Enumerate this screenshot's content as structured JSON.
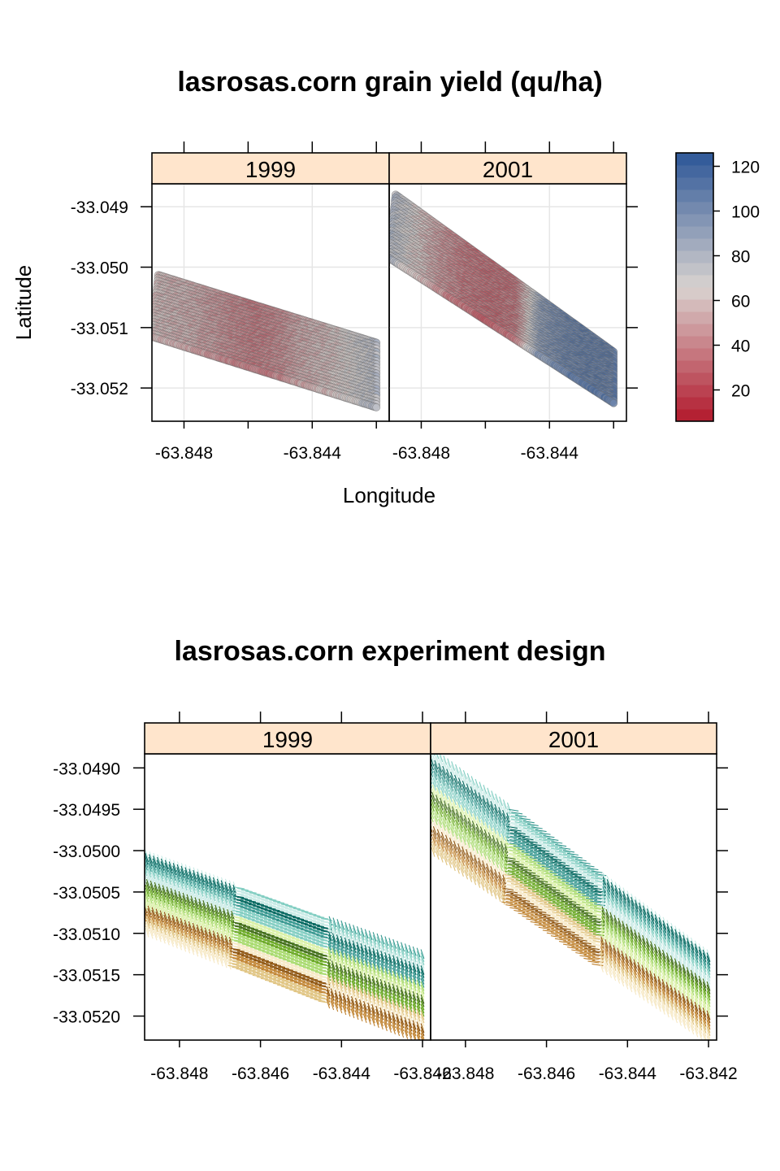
{
  "chart_data": [
    {
      "type": "scatter",
      "title": "lasrosas.corn grain yield (qu/ha)",
      "xlabel": "Longitude",
      "ylabel": "Latitude",
      "panels": [
        "1999",
        "2001"
      ],
      "xticks": [
        "-63.848",
        "-63.844"
      ],
      "xtick_values": [
        -63.848,
        -63.844
      ],
      "yticks": [
        "-33.049",
        "-33.050",
        "-33.051",
        "-33.052"
      ],
      "ytick_values": [
        -33.049,
        -33.05,
        -33.051,
        -33.052
      ],
      "xlim": [
        -63.849,
        -63.8416
      ],
      "ylim": [
        -33.05255,
        -33.04862
      ],
      "grid": true,
      "colorkey": {
        "ticks": [
          "20",
          "40",
          "60",
          "80",
          "100",
          "120"
        ],
        "tick_values": [
          20,
          40,
          60,
          80,
          100,
          120
        ],
        "range": [
          6,
          126
        ],
        "low_color": "#b2182b",
        "mid_color": "#d9d3d0",
        "high_color": "#2c5697"
      },
      "fields": [
        {
          "panel": "1999",
          "corners": {
            "tl": [
              -63.8488,
              -33.05013
            ],
            "tr": [
              -63.842,
              -33.05125
            ],
            "br": [
              -63.842,
              -33.05232
            ],
            "bl": [
              -63.849,
              -33.05115
            ]
          },
          "yield_profile": [
            58,
            55,
            50,
            42,
            36,
            40,
            52,
            58,
            68,
            78
          ]
        },
        {
          "panel": "2001",
          "corners": {
            "tl": [
              -63.8488,
              -33.0488
            ],
            "tr": [
              -63.842,
              -33.0514
            ],
            "br": [
              -63.842,
              -33.05225
            ],
            "bl": [
              -63.849,
              -33.04985
            ]
          },
          "yield_profile": [
            80,
            62,
            45,
            34,
            30,
            34,
            95,
            108,
            112,
            110
          ]
        }
      ]
    },
    {
      "type": "scatter",
      "title": "lasrosas.corn experiment design",
      "xlabel": "",
      "ylabel": "",
      "panels": [
        "1999",
        "2001"
      ],
      "xticks": [
        "-63.848",
        "-63.846",
        "-63.844",
        "-63.842"
      ],
      "xtick_values": [
        -63.848,
        -63.846,
        -63.844,
        -63.842
      ],
      "yticks": [
        "-33.0490",
        "-33.0495",
        "-33.0500",
        "-33.0505",
        "-33.0510",
        "-33.0515",
        "-33.0520"
      ],
      "ytick_values": [
        -33.049,
        -33.0495,
        -33.05,
        -33.0505,
        -33.051,
        -33.0515,
        -33.052
      ],
      "xlim": [
        -63.84886,
        -63.8418
      ],
      "ylim": [
        -33.05229,
        -33.04883
      ],
      "palette": [
        "#f6e8c3",
        "#dfc27d",
        "#bf812d",
        "#8c510a",
        "#d9f0a3",
        "#a6d96a",
        "#66a61e",
        "#3d6b12",
        "#c7eae5",
        "#80cdc1",
        "#35978f",
        "#01665e"
      ],
      "fields": [
        {
          "panel": "1999",
          "corners": {
            "tl": [
              -63.8488,
              -33.05005
            ],
            "tr": [
              -63.842,
              -33.05125
            ],
            "br": [
              -63.842,
              -33.0523
            ],
            "bl": [
              -63.849,
              -33.05095
            ]
          },
          "blocks": 3
        },
        {
          "panel": "2001",
          "corners": {
            "tl": [
              -63.8488,
              -33.0488
            ],
            "tr": [
              -63.842,
              -33.05125
            ],
            "br": [
              -63.842,
              -33.0523
            ],
            "bl": [
              -63.849,
              -33.04995
            ]
          },
          "blocks": 3
        }
      ]
    }
  ]
}
